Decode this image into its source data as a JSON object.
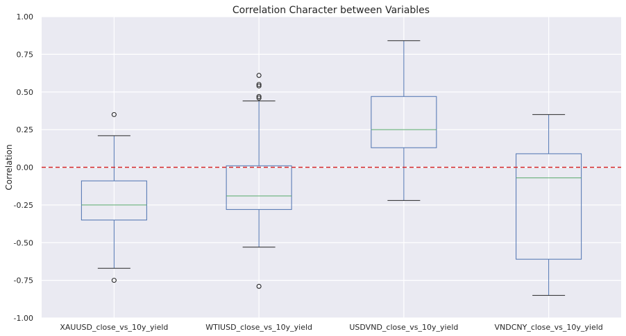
{
  "chart_data": {
    "type": "box",
    "title": "Correlation Character between Variables",
    "xlabel": "",
    "ylabel": "Correlation",
    "ylim": [
      -1.0,
      1.0
    ],
    "yticks": [
      "-1.00",
      "-0.75",
      "-0.50",
      "-0.25",
      "0.00",
      "0.25",
      "0.50",
      "0.75",
      "1.00"
    ],
    "grid": true,
    "reference_line": {
      "y": 0.0,
      "style": "dashed",
      "color": "#d62728"
    },
    "colors": {
      "background": "#eaeaf2",
      "grid": "#ffffff",
      "box": "#4c72b0",
      "median": "#55a868",
      "whisker_cap": "#262626",
      "outlier": "#262626"
    },
    "categories": [
      "XAUUSD_close_vs_10y_yield",
      "WTIUSD_close_vs_10y_yield",
      "USDVND_close_vs_10y_yield",
      "VNDCNY_close_vs_10y_yield"
    ],
    "boxes": [
      {
        "whislo": -0.67,
        "q1": -0.35,
        "med": -0.25,
        "q3": -0.09,
        "whishi": 0.21,
        "fliers": [
          0.35,
          -0.75
        ]
      },
      {
        "whislo": -0.53,
        "q1": -0.28,
        "med": -0.19,
        "q3": 0.01,
        "whishi": 0.44,
        "fliers": [
          0.61,
          0.55,
          0.54,
          0.47,
          0.46,
          -0.79
        ]
      },
      {
        "whislo": -0.22,
        "q1": 0.13,
        "med": 0.25,
        "q3": 0.47,
        "whishi": 0.84,
        "fliers": []
      },
      {
        "whislo": -0.85,
        "q1": -0.61,
        "med": -0.07,
        "q3": 0.09,
        "whishi": 0.35,
        "fliers": []
      }
    ]
  }
}
